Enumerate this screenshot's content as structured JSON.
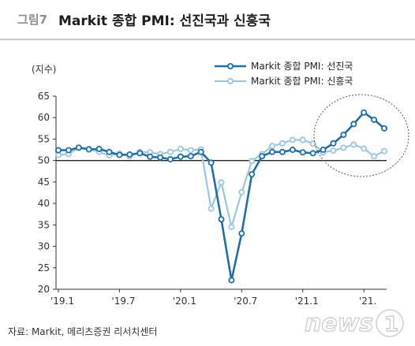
{
  "figure": {
    "number": "그림7",
    "title": "Markit 종합 PMI: 선진국과 신흥국",
    "source": "자료: Markit, 메리츠증권 리서치센터",
    "watermark": "news1"
  },
  "chart_data": {
    "type": "line",
    "ylabel": "(지수)",
    "ylim": [
      20,
      65
    ],
    "yticks": [
      20,
      25,
      30,
      35,
      40,
      45,
      50,
      55,
      60,
      65
    ],
    "xtick_labels": [
      "'19.1",
      "'19.7",
      "'20.1",
      "'20.7",
      "'21.1",
      "'21."
    ],
    "xtick_index": [
      0,
      6,
      12,
      18,
      24,
      30
    ],
    "reference_line": 50,
    "grid": false,
    "legend_position": "top-right",
    "series": [
      {
        "name": "Markit 종합 PMI: 선진국",
        "color": "#1f6fa8",
        "values": [
          52.4,
          52.4,
          53.0,
          52.6,
          52.7,
          52.0,
          51.3,
          51.4,
          51.7,
          50.9,
          50.7,
          50.3,
          50.9,
          51.0,
          52.0,
          49.5,
          36.3,
          22.1,
          33.0,
          46.8,
          51.0,
          52.0,
          52.0,
          52.5,
          51.9,
          51.7,
          52.5,
          54.0,
          56.0,
          58.5,
          61.2,
          59.5,
          57.5
        ]
      },
      {
        "name": "Markit 종합 PMI: 신흥국",
        "color": "#9cc6e0",
        "values": [
          51.3,
          51.5,
          53.0,
          52.7,
          52.0,
          51.2,
          51.6,
          51.0,
          52.0,
          51.9,
          51.5,
          52.0,
          52.7,
          52.4,
          52.6,
          38.8,
          44.9,
          34.5,
          42.6,
          49.9,
          51.5,
          53.4,
          54.0,
          54.8,
          54.8,
          53.9,
          51.9,
          52.3,
          53.0,
          53.7,
          52.8,
          51.0,
          52.2
        ]
      }
    ]
  }
}
